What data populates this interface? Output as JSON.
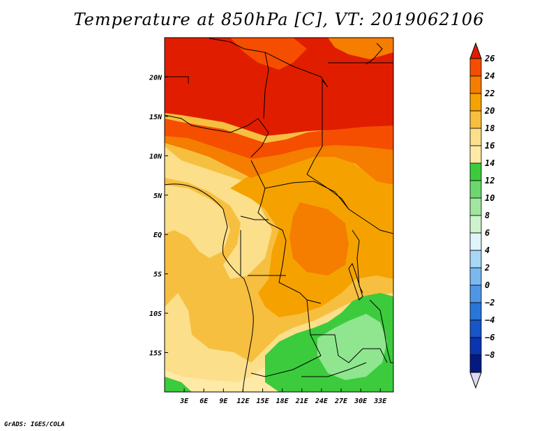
{
  "title": "Temperature at 850hPa [C], VT: 2019062106",
  "credit": "GrADS: IGES/COLA",
  "map": {
    "lat_labels": [
      "20N",
      "15N",
      "10N",
      "5N",
      "EQ",
      "5S",
      "10S",
      "15S"
    ],
    "lat_values": [
      20,
      15,
      10,
      5,
      0,
      -5,
      -10,
      -15
    ],
    "lon_labels": [
      "3E",
      "6E",
      "9E",
      "12E",
      "15E",
      "18E",
      "21E",
      "24E",
      "27E",
      "30E",
      "33E"
    ],
    "lon_values": [
      3,
      6,
      9,
      12,
      15,
      18,
      21,
      24,
      27,
      30,
      33
    ],
    "extent": {
      "lon_min": 0,
      "lon_max": 35,
      "lat_min": -20,
      "lat_max": 25
    },
    "colors": {
      "24_26": "#e11d00",
      "22_24": "#f54e00",
      "20_22": "#f57d00",
      "18_20": "#f5a200",
      "16_18": "#f7bf40",
      "14_16": "#fbdf8a",
      "12_14": "#ffe9a6",
      "10_12": "#3ccb3c",
      "8_10": "#8fe68f",
      "coast": "#000000"
    }
  },
  "colorbar": {
    "labels": [
      "26",
      "24",
      "22",
      "20",
      "18",
      "16",
      "14",
      "12",
      "10",
      "8",
      "6",
      "4",
      "2",
      "0",
      "−2",
      "−4",
      "−6",
      "−8"
    ],
    "colors": [
      "#e11d00",
      "#f54e00",
      "#f57d00",
      "#f5a200",
      "#f7bf40",
      "#fbdf8a",
      "#ffe9a6",
      "#3ccb3c",
      "#6ed66e",
      "#a0e6a0",
      "#cdf2cd",
      "#dff3fa",
      "#a8d6f5",
      "#7ab8ee",
      "#4f97e6",
      "#2876d8",
      "#1755c8",
      "#0a35b0",
      "#051a80",
      "#dcd9f2"
    ]
  }
}
